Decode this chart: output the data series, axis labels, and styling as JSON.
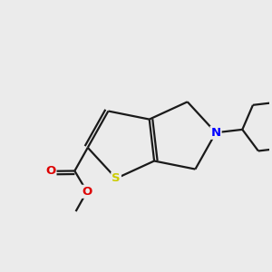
{
  "background_color": "#ebebeb",
  "bond_color": "#1a1a1a",
  "bond_width": 1.6,
  "atom_colors": {
    "S": "#cccc00",
    "N": "#0000ff",
    "O": "#dd0000",
    "C": "#1a1a1a"
  },
  "font_size_atom": 9.5
}
